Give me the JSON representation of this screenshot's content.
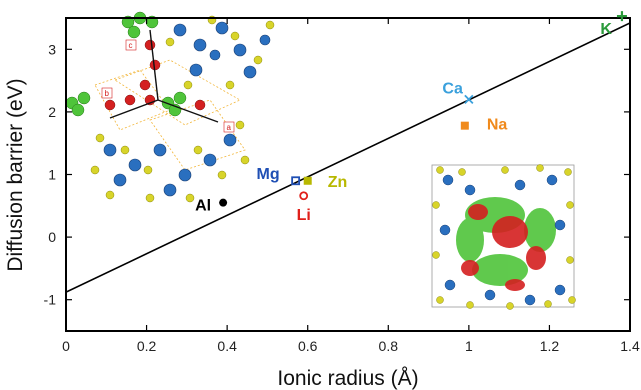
{
  "chart_data": {
    "type": "scatter",
    "xlabel": "Ionic radius (Å)",
    "ylabel": "Diffusion barrier (eV)",
    "xlim": [
      0,
      1.4
    ],
    "ylim": [
      -1.5,
      3.5
    ],
    "x_ticks": [
      "0",
      "0.2",
      "0.4",
      "0.6",
      "0.8",
      "1",
      "1.2",
      "1.4"
    ],
    "y_ticks": [
      "-1",
      "0",
      "1",
      "2",
      "3"
    ],
    "grid": false,
    "fit_line": {
      "x": [
        0,
        1.4
      ],
      "y": [
        -0.88,
        3.42
      ]
    },
    "points": [
      {
        "label": "Al",
        "x": 0.39,
        "y": 0.55,
        "color": "#000000",
        "marker": "filled-circle"
      },
      {
        "label": "Mg",
        "x": 0.57,
        "y": 0.9,
        "color": "#1f4fb4",
        "marker": "open-square"
      },
      {
        "label": "Zn",
        "x": 0.6,
        "y": 0.9,
        "color": "#b8b800",
        "marker": "filled-square"
      },
      {
        "label": "Li",
        "x": 0.59,
        "y": 0.66,
        "color": "#e0201a",
        "marker": "open-circle"
      },
      {
        "label": "Na",
        "x": 0.99,
        "y": 1.78,
        "color": "#f08a1c",
        "marker": "filled-square"
      },
      {
        "label": "Ca",
        "x": 1.0,
        "y": 2.2,
        "color": "#3aa0dc",
        "marker": "cross-x"
      },
      {
        "label": "K",
        "x": 1.38,
        "y": 3.53,
        "color": "#2a9a3a",
        "marker": "plus"
      }
    ]
  }
}
